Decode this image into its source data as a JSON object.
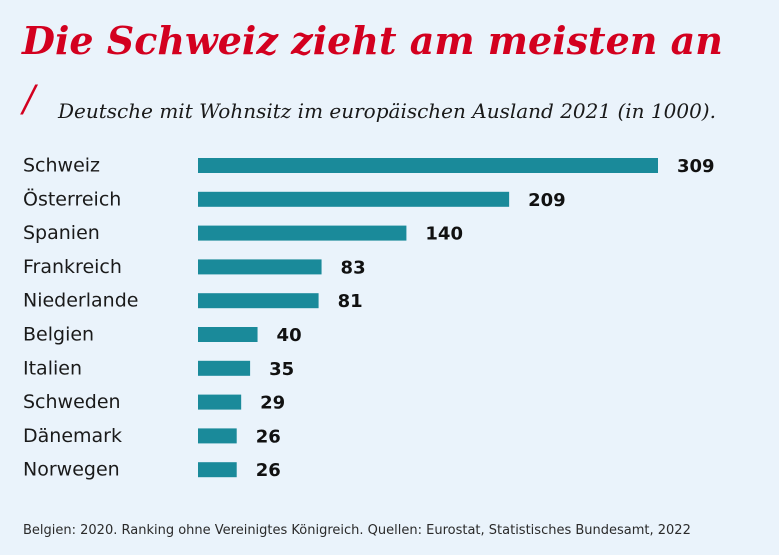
{
  "header": {
    "title": "Die Schweiz zieht am meisten an",
    "slash": "/",
    "subtitle": "Deutsche mit Wohnsitz im europäischen Ausland 2021 (in 1000)."
  },
  "footnote": "Belgien: 2020. Ranking ohne Vereinigtes Königreich. Quellen: Eurostat, Statistisches Bundesamt, 2022",
  "colors": {
    "background": "#eaf3fb",
    "accent": "#d3001f",
    "bar": "#1a8a9a"
  },
  "chart_data": {
    "type": "bar",
    "orientation": "horizontal",
    "title": "Die Schweiz zieht am meisten an",
    "subtitle": "Deutsche mit Wohnsitz im europäischen Ausland 2021 (in 1000).",
    "xlabel": "",
    "ylabel": "",
    "xlim": [
      0,
      309
    ],
    "grid": false,
    "legend": "none",
    "data_labels": true,
    "categories": [
      "Schweiz",
      "Österreich",
      "Spanien",
      "Frankreich",
      "Niederlande",
      "Belgien",
      "Italien",
      "Schweden",
      "Dänemark",
      "Norwegen"
    ],
    "values": [
      309,
      209,
      140,
      83,
      81,
      40,
      35,
      29,
      26,
      26
    ]
  }
}
